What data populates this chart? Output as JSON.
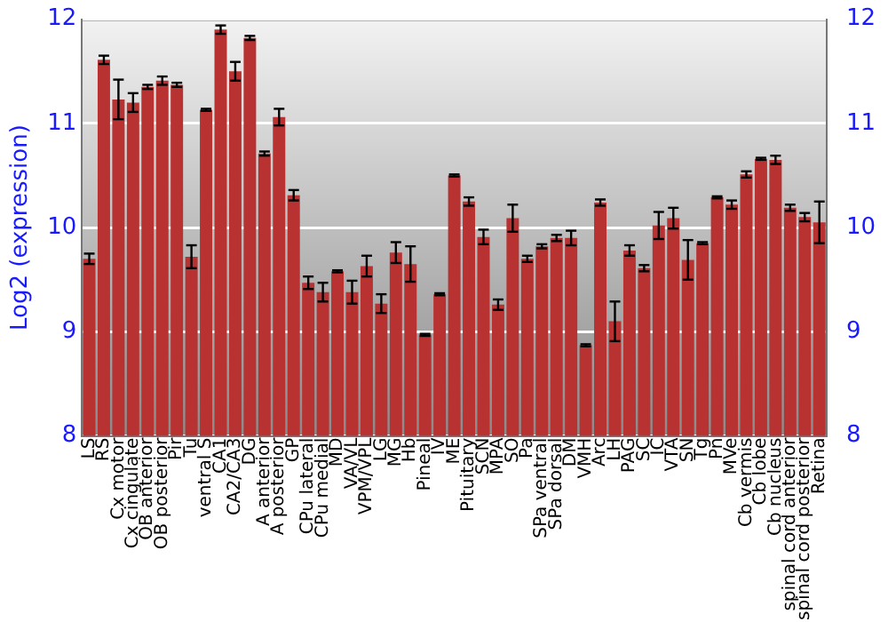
{
  "chart_data": {
    "type": "bar",
    "ylabel": "Log2 (expression)",
    "categories": [
      "LS",
      "RS",
      "Cx motor",
      "Cx cingulate",
      "OB anterior",
      "OB posterior",
      "Pir",
      "Tu",
      "ventral S",
      "CA1",
      "CA2/CA3",
      "DG",
      "A anterior",
      "A posterior",
      "GP",
      "CPu lateral",
      "CPu medial",
      "MD",
      "VA/VL",
      "VPM/VPL",
      "LG",
      "MG",
      "Hb",
      "Pineal",
      "IV",
      "ME",
      "Pituitary",
      "SCN",
      "MPA",
      "SO",
      "Pa",
      "SPa ventral",
      "SPa dorsal",
      "DM",
      "VMH",
      "Arc",
      "LH",
      "PAG",
      "SC",
      "IC",
      "VTA",
      "SN",
      "Tg",
      "Pn",
      "MVe",
      "Cb vermis",
      "Cb lobe",
      "Cb nucleus",
      "spinal cord anterior",
      "spinal cord posterior",
      "Retina"
    ],
    "values": [
      9.7,
      11.61,
      11.23,
      11.2,
      11.35,
      11.41,
      11.37,
      9.72,
      11.13,
      11.9,
      11.5,
      11.82,
      10.71,
      11.06,
      10.31,
      9.47,
      9.38,
      9.58,
      9.38,
      9.63,
      9.27,
      9.76,
      9.65,
      8.97,
      9.36,
      10.5,
      10.25,
      9.91,
      9.26,
      10.09,
      9.7,
      9.82,
      9.9,
      9.9,
      8.87,
      10.24,
      9.1,
      9.78,
      9.61,
      10.02,
      10.09,
      9.69,
      9.85,
      10.29,
      10.22,
      10.51,
      10.66,
      10.65,
      10.19,
      10.1,
      10.05
    ],
    "errors": [
      0.05,
      0.04,
      0.19,
      0.09,
      0.02,
      0.04,
      0.02,
      0.11,
      0.01,
      0.04,
      0.09,
      0.02,
      0.02,
      0.08,
      0.05,
      0.06,
      0.09,
      0.01,
      0.11,
      0.1,
      0.09,
      0.1,
      0.17,
      0.01,
      0.01,
      0.01,
      0.04,
      0.07,
      0.05,
      0.13,
      0.03,
      0.02,
      0.03,
      0.07,
      0.01,
      0.03,
      0.19,
      0.05,
      0.03,
      0.13,
      0.1,
      0.19,
      0.01,
      0.01,
      0.04,
      0.03,
      0.01,
      0.04,
      0.03,
      0.04,
      0.2
    ],
    "color": "#b83232",
    "ylim": [
      8,
      12
    ],
    "yticks": [
      8,
      9,
      10,
      11,
      12
    ],
    "y2lim": [
      8,
      12
    ],
    "y2ticks": [
      8,
      9,
      10,
      11,
      12
    ],
    "grid": "y",
    "legend": false
  }
}
